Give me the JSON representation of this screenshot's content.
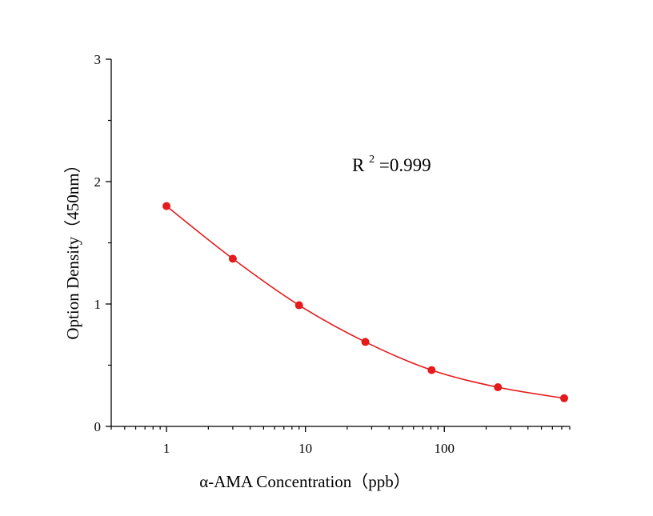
{
  "chart_data": {
    "type": "scatter",
    "title": "",
    "xlabel": "α-AMA Concentration（ppb）",
    "ylabel": "Option Density（450nm）",
    "x_scale": "log",
    "xlim": [
      0.4,
      800
    ],
    "ylim": [
      0,
      3
    ],
    "x_ticks": [
      {
        "value": 1,
        "label": "1"
      },
      {
        "value": 10,
        "label": "10"
      },
      {
        "value": 100,
        "label": "100"
      }
    ],
    "y_ticks": [
      {
        "value": 0,
        "label": "0"
      },
      {
        "value": 1,
        "label": "1"
      },
      {
        "value": 2,
        "label": "2"
      },
      {
        "value": 3,
        "label": "3"
      }
    ],
    "grid": false,
    "legend": "none",
    "series": [
      {
        "color": "#e41a1c",
        "fit_line": true,
        "x": [
          1,
          3,
          9,
          27,
          81,
          243,
          729
        ],
        "y": [
          1.8,
          1.37,
          0.99,
          0.69,
          0.46,
          0.32,
          0.23
        ]
      }
    ],
    "annotation": {
      "base": "R",
      "superscript": "2",
      "text": "=0.999"
    }
  }
}
